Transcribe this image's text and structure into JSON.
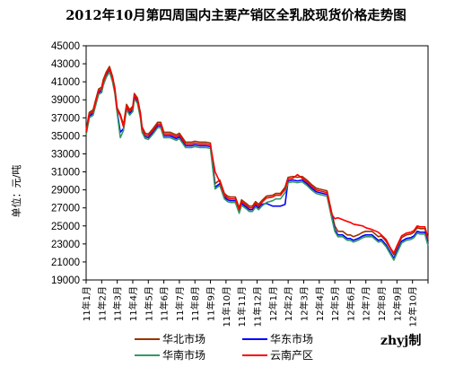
{
  "chart_data": {
    "type": "line",
    "title": "2012年10月第四周国内主要产销区全乳胶现货价格走势图",
    "ylabel": "单位：元/吨",
    "ylim": [
      19000,
      45000
    ],
    "yticks": [
      19000,
      21000,
      23000,
      25000,
      27000,
      29000,
      31000,
      33000,
      35000,
      37000,
      39000,
      41000,
      43000,
      45000
    ],
    "categories": [
      "11年1月",
      "11年2月",
      "11年3月",
      "11年4月",
      "11年5月",
      "11年6月",
      "11年7月",
      "11年8月",
      "11年9月",
      "11年10月",
      "11年11月",
      "11年12月",
      "12年1月",
      "12年2月",
      "12年3月",
      "12年4月",
      "12年5月",
      "12年6月",
      "12年7月",
      "12年8月",
      "12年9月",
      "12年10月"
    ],
    "x_range": [
      0,
      22
    ],
    "legend_position": "bottom",
    "grid": false,
    "series": [
      {
        "name": "华北市场",
        "color": "#993300",
        "x": [
          0,
          0.2,
          0.45,
          0.6,
          0.8,
          1.0,
          1.1,
          1.3,
          1.5,
          1.7,
          1.85,
          2.0,
          2.2,
          2.4,
          2.6,
          2.8,
          3.0,
          3.1,
          3.3,
          3.5,
          3.6,
          3.8,
          4.0,
          4.3,
          4.6,
          4.8,
          5.0,
          5.4,
          5.8,
          6.0,
          6.4,
          6.8,
          7.0,
          7.3,
          7.7,
          8.0,
          8.3,
          8.6,
          8.9,
          9.1,
          9.3,
          9.6,
          9.85,
          10.0,
          10.3,
          10.5,
          10.7,
          10.9,
          11.1,
          11.3,
          11.6,
          12.0,
          12.2,
          12.5,
          12.8,
          13.0,
          13.3,
          13.6,
          13.9,
          14.2,
          14.5,
          14.8,
          15.0,
          15.5,
          15.8,
          16.0,
          16.2,
          16.5,
          16.8,
          17.0,
          17.2,
          17.5,
          17.8,
          18.0,
          18.4,
          18.8,
          19.0,
          19.3,
          19.6,
          19.8,
          20.0,
          20.3,
          20.6,
          20.9,
          21.1,
          21.3,
          21.5,
          21.8,
          22.0
        ],
        "values": [
          35600,
          37600,
          37900,
          38900,
          40200,
          40400,
          41200,
          42100,
          42700,
          41600,
          40300,
          38100,
          37400,
          36200,
          38500,
          37900,
          38300,
          39700,
          39200,
          37500,
          36000,
          35300,
          35200,
          35800,
          36500,
          36500,
          35400,
          35400,
          35100,
          35300,
          34300,
          34300,
          34400,
          34300,
          34300,
          34200,
          29700,
          30100,
          28600,
          28300,
          28200,
          28200,
          27000,
          27900,
          27500,
          27200,
          27200,
          27700,
          27400,
          27800,
          28300,
          28400,
          28600,
          28600,
          29300,
          30400,
          30500,
          30400,
          30500,
          30100,
          29600,
          29200,
          29100,
          28900,
          26500,
          25000,
          24400,
          24400,
          24000,
          24000,
          23800,
          24000,
          24300,
          24400,
          24400,
          23800,
          23900,
          23300,
          22400,
          21800,
          22600,
          23700,
          24000,
          24100,
          24300,
          24800,
          24700,
          24700,
          23400
        ]
      },
      {
        "name": "华东市场",
        "color": "#0000ff",
        "x": [
          0,
          0.2,
          0.45,
          0.6,
          0.8,
          1.0,
          1.1,
          1.3,
          1.5,
          1.7,
          1.85,
          2.0,
          2.2,
          2.4,
          2.6,
          2.8,
          3.0,
          3.1,
          3.3,
          3.5,
          3.6,
          3.8,
          4.0,
          4.3,
          4.6,
          4.8,
          5.0,
          5.4,
          5.8,
          6.0,
          6.4,
          6.8,
          7.0,
          7.3,
          7.7,
          8.0,
          8.3,
          8.6,
          8.9,
          9.1,
          9.3,
          9.6,
          9.85,
          10.0,
          10.3,
          10.5,
          10.7,
          10.9,
          11.1,
          11.3,
          11.6,
          12.0,
          12.2,
          12.5,
          12.8,
          13.0,
          13.3,
          13.6,
          13.9,
          14.2,
          14.5,
          14.8,
          15.0,
          15.5,
          15.8,
          16.0,
          16.2,
          16.5,
          16.8,
          17.0,
          17.2,
          17.5,
          17.8,
          18.0,
          18.4,
          18.8,
          19.0,
          19.3,
          19.6,
          19.8,
          20.0,
          20.3,
          20.6,
          20.9,
          21.1,
          21.3,
          21.5,
          21.8,
          22.0
        ],
        "values": [
          35300,
          37200,
          37500,
          38500,
          39800,
          40000,
          40800,
          41700,
          42300,
          41200,
          39900,
          37700,
          35400,
          35800,
          38100,
          37500,
          37900,
          39300,
          38800,
          37100,
          35600,
          34900,
          34800,
          35400,
          36100,
          36100,
          35000,
          35000,
          34700,
          34900,
          33900,
          33900,
          34000,
          33900,
          33900,
          33800,
          29300,
          29700,
          28200,
          27900,
          27800,
          27800,
          26600,
          27500,
          27100,
          26800,
          26800,
          27300,
          27000,
          27400,
          27500,
          27200,
          27200,
          27200,
          27400,
          30000,
          30100,
          30000,
          30100,
          29700,
          29200,
          28800,
          28700,
          28500,
          26100,
          24600,
          24000,
          24000,
          23600,
          23600,
          23400,
          23600,
          23900,
          24000,
          24000,
          23400,
          23500,
          22900,
          22000,
          21400,
          22200,
          23300,
          23600,
          23700,
          23900,
          24400,
          24300,
          24300,
          23000
        ]
      },
      {
        "name": "华南市场",
        "color": "#339966",
        "x": [
          0,
          0.2,
          0.45,
          0.6,
          0.8,
          1.0,
          1.1,
          1.3,
          1.5,
          1.7,
          1.85,
          2.0,
          2.2,
          2.4,
          2.6,
          2.8,
          3.0,
          3.1,
          3.3,
          3.5,
          3.6,
          3.8,
          4.0,
          4.3,
          4.6,
          4.8,
          5.0,
          5.4,
          5.8,
          6.0,
          6.4,
          6.8,
          7.0,
          7.3,
          7.7,
          8.0,
          8.3,
          8.6,
          8.9,
          9.1,
          9.3,
          9.6,
          9.85,
          10.0,
          10.3,
          10.5,
          10.7,
          10.9,
          11.1,
          11.3,
          11.6,
          12.0,
          12.2,
          12.5,
          12.8,
          13.0,
          13.3,
          13.6,
          13.9,
          14.2,
          14.5,
          14.8,
          15.0,
          15.5,
          15.8,
          16.0,
          16.2,
          16.5,
          16.8,
          17.0,
          17.2,
          17.5,
          17.8,
          18.0,
          18.4,
          18.8,
          19.0,
          19.3,
          19.6,
          19.8,
          20.0,
          20.3,
          20.6,
          20.9,
          21.1,
          21.3,
          21.5,
          21.8,
          22.0
        ],
        "values": [
          35100,
          37000,
          37300,
          38300,
          39600,
          39800,
          40600,
          41500,
          42100,
          41000,
          39700,
          37500,
          34800,
          35600,
          37900,
          37300,
          37700,
          39100,
          38600,
          36900,
          35400,
          34700,
          34600,
          35200,
          35900,
          35900,
          34800,
          34800,
          34500,
          34700,
          33700,
          33700,
          33800,
          33700,
          33700,
          33600,
          29100,
          29500,
          28000,
          27700,
          27600,
          27600,
          26400,
          27300,
          26900,
          26600,
          26600,
          27100,
          26800,
          27200,
          27600,
          27800,
          28000,
          28000,
          28700,
          29800,
          29900,
          29800,
          29900,
          29500,
          29000,
          28600,
          28500,
          28300,
          25900,
          24400,
          23800,
          23800,
          23400,
          23400,
          23200,
          23400,
          23700,
          23800,
          23800,
          23200,
          23300,
          22700,
          21800,
          21200,
          22000,
          23100,
          23400,
          23500,
          23700,
          24200,
          24100,
          24100,
          22800
        ]
      },
      {
        "name": "云南产区",
        "color": "#ff0000",
        "x": [
          0,
          0.2,
          0.45,
          0.6,
          0.8,
          1.0,
          1.1,
          1.3,
          1.5,
          1.7,
          1.85,
          2.0,
          2.2,
          2.4,
          2.6,
          2.8,
          3.0,
          3.1,
          3.3,
          3.5,
          3.6,
          3.8,
          4.0,
          4.3,
          4.6,
          4.8,
          5.0,
          5.4,
          5.8,
          6.0,
          6.4,
          6.8,
          7.0,
          7.3,
          7.7,
          8.0,
          8.3,
          8.6,
          8.9,
          9.1,
          9.3,
          9.6,
          9.85,
          10.0,
          10.3,
          10.5,
          10.7,
          10.9,
          11.1,
          11.3,
          11.6,
          12.0,
          12.2,
          12.5,
          12.8,
          13.0,
          13.3,
          13.6,
          13.9,
          14.2,
          14.5,
          14.8,
          15.0,
          15.5,
          15.8,
          16.0,
          16.2,
          16.5,
          16.8,
          17.0,
          17.2,
          17.5,
          17.8,
          18.0,
          18.4,
          18.8,
          19.0,
          19.3,
          19.6,
          19.8,
          20.0,
          20.3,
          20.6,
          20.9,
          21.1,
          21.3,
          21.5,
          21.8,
          22.0
        ],
        "values": [
          35400,
          37400,
          37700,
          38700,
          40000,
          40200,
          41000,
          41900,
          42500,
          41400,
          40100,
          37900,
          37200,
          36000,
          38300,
          37700,
          38100,
          39500,
          39000,
          37300,
          35800,
          35100,
          35000,
          35600,
          36300,
          36300,
          35200,
          35200,
          34900,
          35100,
          34100,
          34100,
          34200,
          34100,
          34100,
          34000,
          31000,
          29900,
          28400,
          28100,
          28000,
          28000,
          26800,
          27700,
          27300,
          27000,
          27000,
          27500,
          27200,
          27600,
          28100,
          28200,
          28400,
          28400,
          29100,
          30200,
          30300,
          30700,
          30300,
          29900,
          29400,
          29000,
          28900,
          28700,
          26300,
          25800,
          25900,
          25700,
          25500,
          25400,
          25200,
          25100,
          25000,
          24800,
          24600,
          24300,
          24000,
          23500,
          22500,
          22000,
          22800,
          23900,
          24200,
          24300,
          24500,
          25000,
          24900,
          24900,
          23600
        ]
      }
    ]
  },
  "watermark": "zhyj制"
}
